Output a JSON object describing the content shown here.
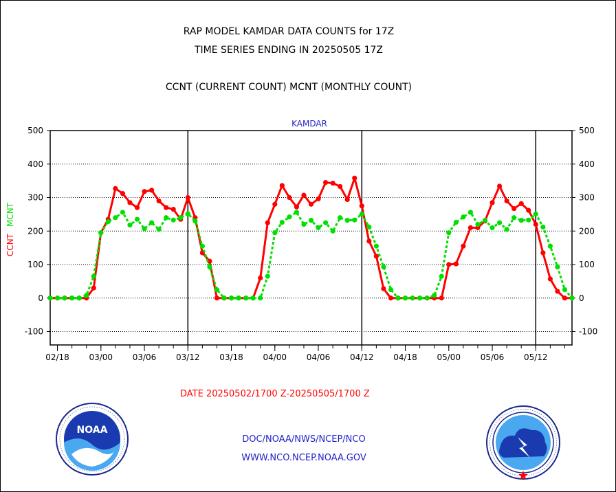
{
  "title_lines": [
    "RAP MODEL KAMDAR DATA COUNTS for 17Z",
    "TIME SERIES ENDING IN 20250505 17Z",
    "CCNT (CURRENT COUNT) MCNT (MONTHLY COUNT)"
  ],
  "date_range": "DATE 20250502/1700 Z-20250505/1700 Z",
  "footer": {
    "line1": "DOC/NOAA/NWS/NCEP/NCO",
    "line2": "WWW.NCO.NCEP.NOAA.GOV"
  },
  "logos": {
    "left": "noaa-logo",
    "left_text": "NOAA",
    "right": "nws-logo"
  },
  "colors": {
    "ccnt": "#ff0000",
    "mcnt": "#00e000",
    "blue_text": "#2222cc",
    "axis": "#000000"
  },
  "chart_data": {
    "type": "line",
    "title": "KAMDAR",
    "ylabel_left": [
      "CCNT",
      "MCNT"
    ],
    "ylim": [
      -140,
      500
    ],
    "yticks": [
      -100,
      0,
      100,
      200,
      300,
      400,
      500
    ],
    "gridlines_dotted": [
      -100,
      0,
      100,
      200,
      300,
      400
    ],
    "grid": true,
    "x_range": [
      -1,
      71
    ],
    "xtick_labels": [
      {
        "label": "02/18",
        "x": 0
      },
      {
        "label": "03/00",
        "x": 6
      },
      {
        "label": "03/06",
        "x": 12
      },
      {
        "label": "03/12",
        "x": 18
      },
      {
        "label": "03/18",
        "x": 24
      },
      {
        "label": "04/00",
        "x": 30
      },
      {
        "label": "04/06",
        "x": 36
      },
      {
        "label": "04/12",
        "x": 42
      },
      {
        "label": "04/18",
        "x": 48
      },
      {
        "label": "05/00",
        "x": 54
      },
      {
        "label": "05/06",
        "x": 60
      },
      {
        "label": "05/12",
        "x": 66
      }
    ],
    "minor_ticks": [
      0,
      2,
      4,
      6,
      8,
      10,
      12,
      14,
      16,
      18,
      20,
      22,
      24,
      26,
      28,
      30,
      32,
      34,
      36,
      38,
      40,
      42,
      44,
      46,
      48,
      50,
      52,
      54,
      56,
      58,
      60,
      62,
      64,
      66,
      68,
      70
    ],
    "vertical_lines": [
      18,
      42,
      66
    ],
    "series": [
      {
        "name": "CCNT",
        "color": "#ff0000",
        "style": "solid",
        "x": [
          -1,
          0,
          1,
          2,
          3,
          4,
          5,
          6,
          7,
          8,
          9,
          10,
          11,
          12,
          13,
          14,
          15,
          16,
          17,
          18,
          19,
          20,
          21,
          22,
          23,
          24,
          25,
          26,
          27,
          28,
          29,
          30,
          31,
          32,
          33,
          34,
          35,
          36,
          37,
          38,
          39,
          40,
          41,
          42,
          43,
          44,
          45,
          46,
          47,
          48,
          49,
          50,
          51,
          52,
          53,
          54,
          55,
          56,
          57,
          58,
          59,
          60,
          61,
          62,
          63,
          64,
          65,
          66,
          67,
          68,
          69,
          70,
          71
        ],
        "values": [
          0,
          0,
          0,
          0,
          0,
          0,
          30,
          195,
          235,
          327,
          312,
          285,
          270,
          318,
          322,
          290,
          270,
          265,
          235,
          300,
          240,
          135,
          110,
          0,
          0,
          0,
          0,
          0,
          0,
          60,
          225,
          280,
          336,
          300,
          272,
          307,
          280,
          296,
          345,
          343,
          333,
          294,
          358,
          275,
          170,
          125,
          28,
          0,
          0,
          0,
          0,
          0,
          0,
          0,
          0,
          100,
          102,
          155,
          210,
          210,
          230,
          285,
          334,
          290,
          267,
          282,
          262,
          220,
          135,
          57,
          20,
          0,
          0
        ]
      },
      {
        "name": "MCNT",
        "color": "#00e000",
        "style": "dotted",
        "x": [
          -1,
          0,
          1,
          2,
          3,
          4,
          5,
          6,
          7,
          8,
          9,
          10,
          11,
          12,
          13,
          14,
          15,
          16,
          17,
          18,
          19,
          20,
          21,
          22,
          23,
          24,
          25,
          26,
          27,
          28,
          29,
          30,
          31,
          32,
          33,
          34,
          35,
          36,
          37,
          38,
          39,
          40,
          41,
          42,
          43,
          44,
          45,
          46,
          47,
          48,
          49,
          50,
          51,
          52,
          53,
          54,
          55,
          56,
          57,
          58,
          59,
          60,
          61,
          62,
          63,
          64,
          65,
          66,
          67,
          68,
          69,
          70,
          71
        ],
        "values": [
          0,
          0,
          0,
          0,
          0,
          8,
          65,
          195,
          228,
          240,
          256,
          218,
          235,
          207,
          225,
          205,
          240,
          233,
          240,
          252,
          230,
          155,
          93,
          25,
          0,
          0,
          0,
          0,
          0,
          0,
          65,
          195,
          226,
          242,
          256,
          220,
          232,
          210,
          225,
          200,
          240,
          232,
          233,
          251,
          212,
          155,
          93,
          25,
          0,
          0,
          0,
          0,
          0,
          8,
          65,
          195,
          226,
          242,
          256,
          220,
          232,
          210,
          225,
          205,
          240,
          232,
          233,
          251,
          212,
          155,
          93,
          25,
          0
        ]
      }
    ]
  }
}
